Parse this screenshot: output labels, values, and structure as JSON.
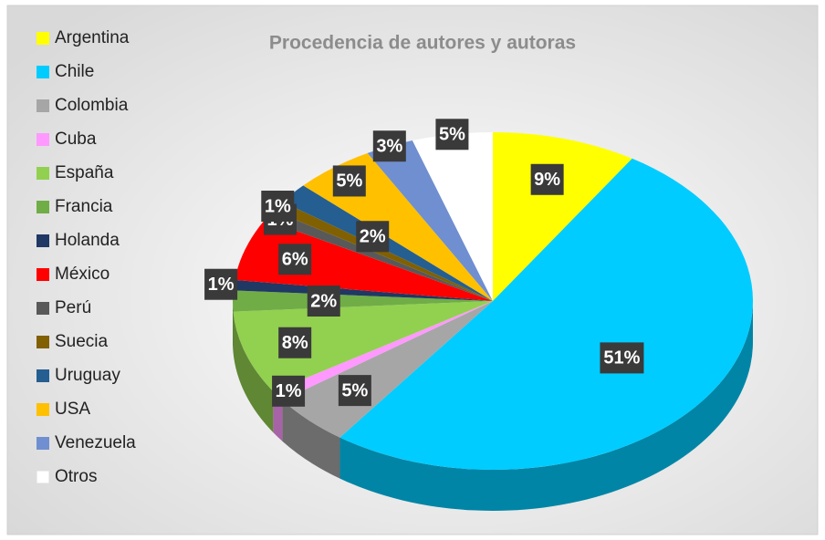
{
  "chart_data": {
    "type": "pie",
    "title": "Procedencia de autores y autoras",
    "categories": [
      "Argentina",
      "Chile",
      "Colombia",
      "Cuba",
      "España",
      "Francia",
      "Holanda",
      "México",
      "Perú",
      "Suecia",
      "Uruguay",
      "USA",
      "Venezuela",
      "Otros"
    ],
    "values": [
      9,
      51,
      5,
      1,
      8,
      2,
      1,
      6,
      1,
      1,
      2,
      5,
      3,
      5
    ],
    "value_labels": [
      "9%",
      "51%",
      "5%",
      "1%",
      "8%",
      "2%",
      "1%",
      "6%",
      "1%",
      "1%",
      "2%",
      "5%",
      "3%",
      "5%"
    ],
    "colors": [
      "#ffff00",
      "#00ccff",
      "#a6a6a6",
      "#ff99ff",
      "#92d050",
      "#70ad47",
      "#1f3864",
      "#ff0000",
      "#595959",
      "#806000",
      "#255e91",
      "#ffc000",
      "#6f8fd0",
      "#ffffff"
    ],
    "legend": "left"
  }
}
